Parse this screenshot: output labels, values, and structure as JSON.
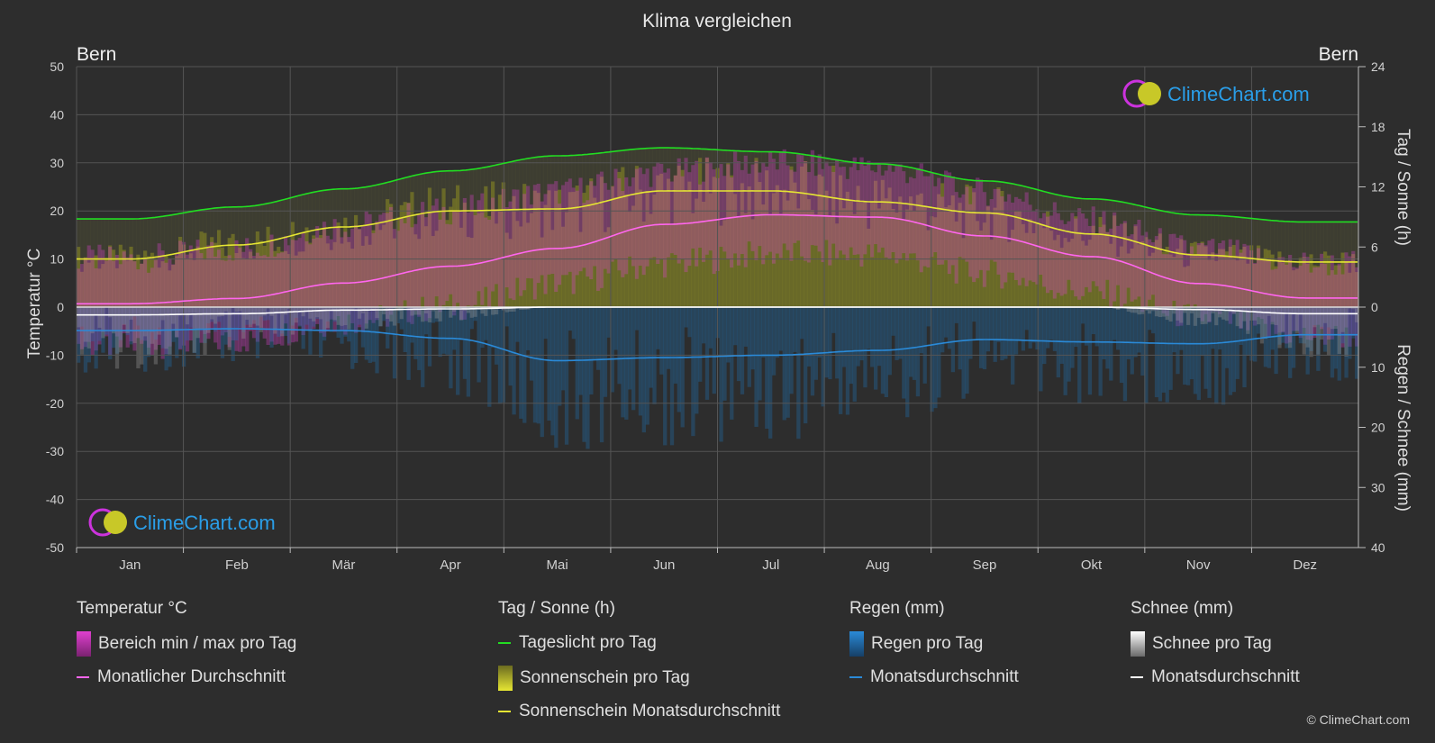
{
  "header": {
    "title": "Klima vergleichen",
    "location_left": "Bern",
    "location_right": "Bern"
  },
  "axes": {
    "left_label": "Temperatur °C",
    "right_top_label": "Tag / Sonne (h)",
    "right_bottom_label": "Regen / Schnee (mm)"
  },
  "logo": {
    "text": "ClimeChart.com"
  },
  "copyright": "© ClimeChart.com",
  "legend": {
    "temperature": {
      "title": "Temperatur °C",
      "range": "Bereich min / max pro Tag",
      "avg": "Monatlicher Durchschnitt"
    },
    "sun": {
      "title": "Tag / Sonne (h)",
      "daylight": "Tageslicht pro Tag",
      "sunshine": "Sonnenschein pro Tag",
      "sun_avg": "Sonnenschein Monatsdurchschnitt"
    },
    "rain": {
      "title": "Regen (mm)",
      "rain_day": "Regen pro Tag",
      "rain_avg": "Monatsdurchschnitt"
    },
    "snow": {
      "title": "Schnee (mm)",
      "snow_day": "Schnee pro Tag",
      "snow_avg": "Monatsdurchschnitt"
    }
  },
  "colors": {
    "background": "#2d2d2d",
    "grid": "#555555",
    "daylight": "#22dd22",
    "sunshine_avg": "#e6e633",
    "temp_avg": "#ff66ee",
    "rain_avg": "#2a8ad8",
    "snow_avg": "#ffffff",
    "temp_range": "#e040d0",
    "rain_bar": "#1f6fb0",
    "snow_bar": "#9a9a9a",
    "sun_bar": "#a0a020",
    "logo_text": "#2a9ee8"
  },
  "chart_data": {
    "type": "line",
    "categories": [
      "Jan",
      "Feb",
      "Mär",
      "Apr",
      "Mai",
      "Jun",
      "Jul",
      "Aug",
      "Sep",
      "Okt",
      "Nov",
      "Dez"
    ],
    "left_axis": {
      "ticks": [
        50,
        40,
        30,
        20,
        10,
        0,
        -10,
        -20,
        -30,
        -40,
        -50
      ],
      "ylim": [
        -50,
        50
      ]
    },
    "right_axis_top": {
      "ticks": [
        24,
        18,
        12,
        6,
        0
      ],
      "ylim": [
        0,
        24
      ]
    },
    "right_axis_bottom": {
      "ticks": [
        0,
        10,
        20,
        30,
        40
      ],
      "ylim": [
        0,
        40
      ]
    },
    "series": [
      {
        "name": "Tageslicht pro Tag",
        "axis": "hours",
        "values": [
          8.8,
          10.0,
          11.8,
          13.6,
          15.1,
          15.9,
          15.5,
          14.3,
          12.6,
          10.8,
          9.2,
          8.5
        ]
      },
      {
        "name": "Sonnenschein Monatsdurchschnitt",
        "axis": "hours",
        "values": [
          4.8,
          6.2,
          8.0,
          9.6,
          9.8,
          11.6,
          11.6,
          10.5,
          9.4,
          7.3,
          5.2,
          4.5
        ]
      },
      {
        "name": "Monatlicher Durchschnitt",
        "axis": "temp",
        "values": [
          0.7,
          1.8,
          5.0,
          8.5,
          12.2,
          17.2,
          19.2,
          18.7,
          14.8,
          10.5,
          4.9,
          1.9
        ]
      },
      {
        "name": "Regen Monatsdurchschnitt",
        "axis": "precip",
        "values": [
          3.9,
          3.6,
          3.9,
          5.2,
          8.9,
          8.4,
          8.0,
          7.2,
          5.4,
          5.8,
          6.1,
          4.6
        ]
      },
      {
        "name": "Schnee Monatsdurchschnitt",
        "axis": "precip",
        "values": [
          1.3,
          1.1,
          0.5,
          0.3,
          0.0,
          0.0,
          0.0,
          0.0,
          0.0,
          0.0,
          0.4,
          1.1
        ]
      }
    ],
    "daily_ranges": {
      "temp_max": [
        10,
        12,
        17,
        20,
        24,
        28,
        30,
        29,
        24,
        18,
        12,
        9
      ],
      "temp_min": [
        -8,
        -7,
        -3,
        0,
        5,
        9,
        11,
        11,
        7,
        3,
        -2,
        -6
      ]
    },
    "grid": true
  }
}
